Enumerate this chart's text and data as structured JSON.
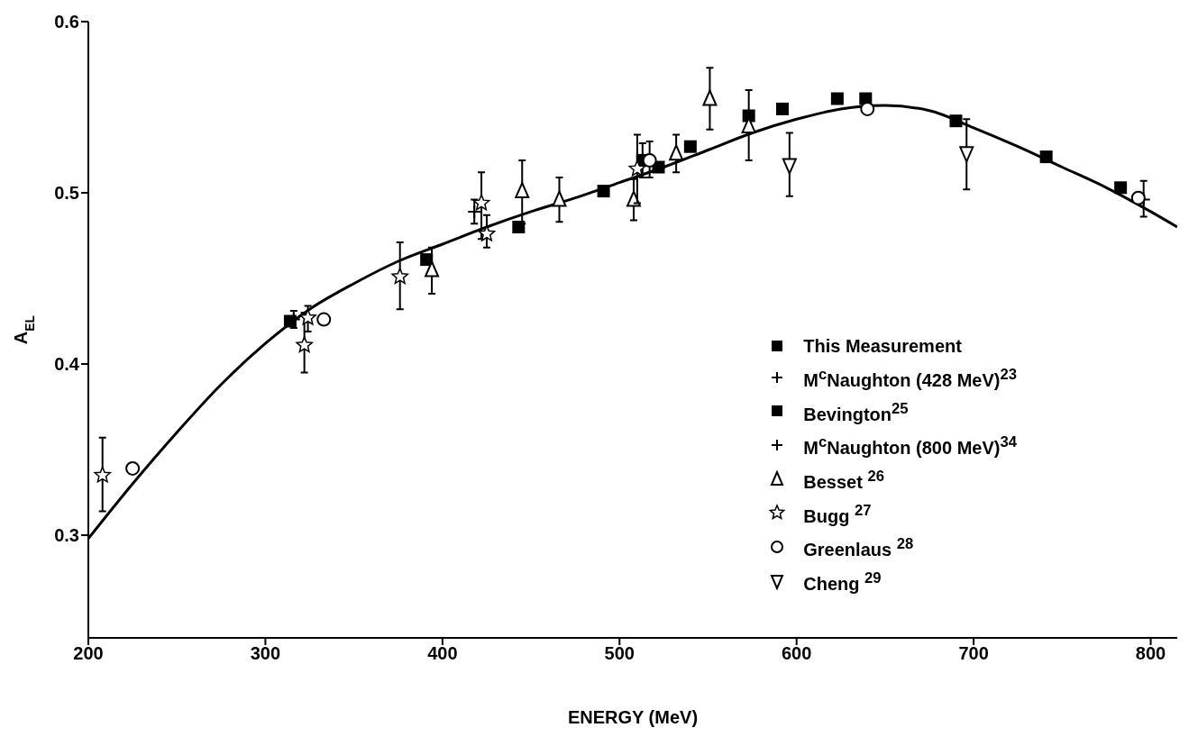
{
  "chart_data": {
    "type": "scatter",
    "xlabel": "ENERGY  (MeV)",
    "ylabel": "A$_{EL}$",
    "xlim": [
      200,
      815
    ],
    "xticks": [
      200,
      300,
      400,
      500,
      600,
      700,
      800
    ],
    "ylim": [
      0.24,
      0.6
    ],
    "yticks": [
      0.3,
      0.4,
      0.5,
      0.6
    ],
    "grid": false,
    "legend": "right",
    "series": [
      {
        "name": "This Measurement",
        "color": "#000000",
        "marker": "square",
        "x": [
          314,
          391,
          443,
          491,
          522,
          540,
          573,
          592,
          623,
          639,
          690,
          741
        ],
        "values": [
          0.425,
          0.461,
          0.48,
          0.501,
          0.515,
          0.527,
          0.545,
          0.549,
          0.555,
          0.555,
          0.542,
          0.521
        ]
      },
      {
        "name": "M$^{c}$Naughton (428 MeV)$^{23}$",
        "color": "#000000",
        "marker": "cross",
        "x": [
          316,
          418
        ],
        "values": [
          0.426,
          0.489
        ],
        "errors": [
          [
            0.421,
            0.431
          ],
          [
            0.482,
            0.496
          ]
        ]
      },
      {
        "name": "Bevington$^{25}$",
        "color": "#000000",
        "marker": "square",
        "x": [
          513,
          783
        ],
        "values": [
          0.519,
          0.503
        ],
        "errors": [
          [
            0.509,
            0.529
          ],
          null
        ]
      },
      {
        "name": "M$^{c}$Naughton (800 MeV)$^{34}$",
        "color": "#000000",
        "marker": "cross",
        "x": [
          796
        ],
        "values": [
          0.496
        ],
        "errors": [
          [
            0.486,
            0.507
          ]
        ]
      },
      {
        "name": "Besset $^{26}$",
        "color": "#000000",
        "marker": "triangle",
        "x": [
          394,
          445,
          466,
          508,
          532,
          551,
          573
        ],
        "values": [
          0.455,
          0.501,
          0.496,
          0.496,
          0.523,
          0.555,
          0.539
        ],
        "errors": [
          [
            0.441,
            0.468
          ],
          [
            0.482,
            0.519
          ],
          [
            0.483,
            0.509
          ],
          [
            0.484,
            0.508
          ],
          [
            0.512,
            0.534
          ],
          [
            0.537,
            0.573
          ],
          [
            0.519,
            0.56
          ]
        ]
      },
      {
        "name": "Bugg $^{27}$",
        "color": "#000000",
        "marker": "star",
        "x": [
          208,
          322,
          324,
          376,
          422,
          425,
          510
        ],
        "values": [
          0.335,
          0.411,
          0.427,
          0.451,
          0.494,
          0.476,
          0.514
        ],
        "errors": [
          [
            0.314,
            0.357
          ],
          [
            0.395,
            0.43
          ],
          [
            0.419,
            0.434
          ],
          [
            0.432,
            0.471
          ],
          [
            0.473,
            0.512
          ],
          [
            0.468,
            0.487
          ],
          [
            0.494,
            0.534
          ]
        ]
      },
      {
        "name": "Greenlaus $^{28}$",
        "color": "#000000",
        "marker": "circle",
        "x": [
          225,
          333,
          517,
          640,
          793
        ],
        "values": [
          0.339,
          0.426,
          0.519,
          0.549,
          0.497
        ],
        "errors": [
          null,
          null,
          [
            0.509,
            0.53
          ],
          null,
          null
        ]
      },
      {
        "name": "Cheng $^{29}$",
        "color": "#000000",
        "marker": "triangle-down",
        "x": [
          596,
          696
        ],
        "values": [
          0.516,
          0.523
        ],
        "errors": [
          [
            0.498,
            0.535
          ],
          [
            0.502,
            0.543
          ]
        ]
      },
      {
        "type": "line",
        "color": "#000000",
        "marker": "none",
        "line_style": "solid",
        "x": [
          200,
          225,
          250,
          275,
          300,
          325,
          350,
          375,
          400,
          425,
          450,
          475,
          500,
          525,
          550,
          575,
          600,
          625,
          650,
          675,
          700,
          725,
          750,
          775,
          800,
          815
        ],
        "values": [
          0.298,
          0.33,
          0.36,
          0.388,
          0.412,
          0.432,
          0.447,
          0.46,
          0.47,
          0.48,
          0.489,
          0.497,
          0.506,
          0.515,
          0.525,
          0.535,
          0.543,
          0.549,
          0.551,
          0.548,
          0.538,
          0.527,
          0.515,
          0.503,
          0.489,
          0.48
        ]
      }
    ]
  }
}
